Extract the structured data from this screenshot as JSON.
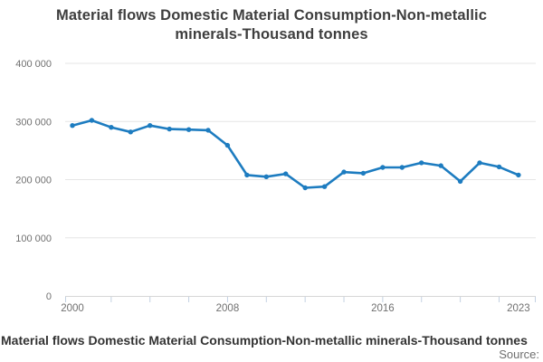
{
  "chart": {
    "title_lines": [
      "Material flows Domestic Material Consumption-Non-metallic",
      "minerals-Thousand tonnes"
    ]
  },
  "footer": {
    "title": "Material flows Domestic Material Consumption-Non-metallic minerals-Thousand tonnes",
    "source_label": "Source:"
  },
  "chart_data": {
    "type": "line",
    "title": "Material flows Domestic Material Consumption-Non-metallic minerals-Thousand tonnes",
    "xlabel": "",
    "ylabel": "",
    "x": [
      2000,
      2001,
      2002,
      2003,
      2004,
      2005,
      2006,
      2007,
      2008,
      2009,
      2010,
      2011,
      2012,
      2013,
      2014,
      2015,
      2016,
      2017,
      2018,
      2019,
      2020,
      2021,
      2022,
      2023
    ],
    "series": [
      {
        "name": "Domestic Material Consumption - Non-metallic minerals (thousand tonnes)",
        "values": [
          293000,
          302000,
          290000,
          282000,
          293000,
          287000,
          286000,
          285000,
          259000,
          208000,
          205000,
          210000,
          186000,
          188000,
          213000,
          211000,
          221000,
          221000,
          229000,
          224000,
          197000,
          229000,
          222000,
          208000
        ]
      }
    ],
    "ylim": [
      0,
      400000
    ],
    "xlim": [
      1999.6,
      2024
    ],
    "yticks": [
      {
        "value": 0,
        "label": "0"
      },
      {
        "value": 100000,
        "label": "100 000"
      },
      {
        "value": 200000,
        "label": "200 000"
      },
      {
        "value": 300000,
        "label": "300 000"
      },
      {
        "value": 400000,
        "label": "400 000"
      }
    ],
    "xtick_labels": [
      {
        "value": 2000,
        "label": "2000"
      },
      {
        "value": 2008,
        "label": "2008"
      },
      {
        "value": 2016,
        "label": "2016"
      },
      {
        "value": 2023,
        "label": "2023"
      }
    ],
    "grid": true,
    "legend": "none",
    "marker": "circle",
    "colors": {
      "line": "#1d7cc0",
      "grid": "#e6e6e6",
      "axis": "#d6d6d6",
      "tick": "#c3d1e2",
      "axis_label": "#707070"
    }
  }
}
